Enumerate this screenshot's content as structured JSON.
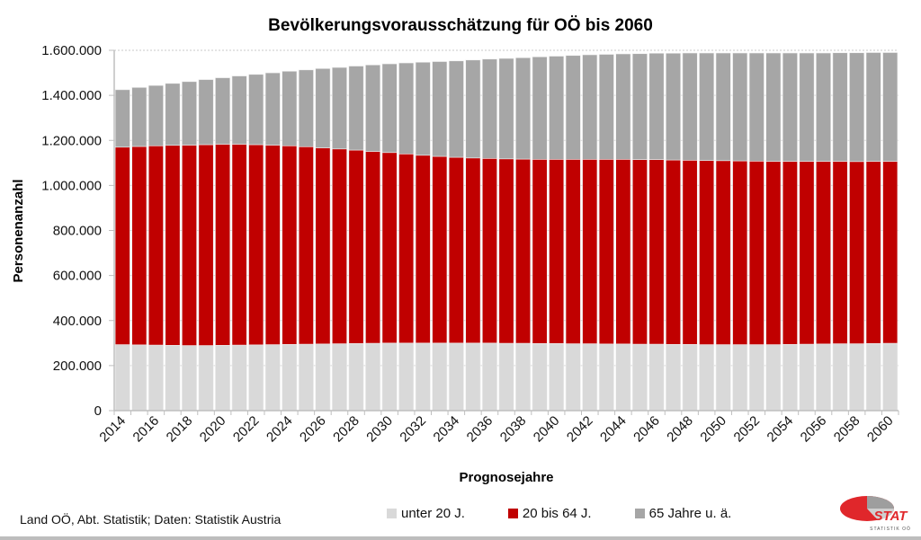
{
  "chart_data": {
    "type": "bar",
    "stacked": true,
    "title": "Bevölkerungsvorausschätzung für OÖ bis 2060",
    "xlabel": "Prognosejahre",
    "ylabel": "Personenanzahl",
    "ylim": [
      0,
      1600000
    ],
    "yticks": [
      0,
      200000,
      400000,
      600000,
      800000,
      1000000,
      1200000,
      1400000,
      1600000
    ],
    "ytick_labels": [
      "0",
      "200.000",
      "400.000",
      "600.000",
      "800.000",
      "1.000.000",
      "1.200.000",
      "1.400.000",
      "1.600.000"
    ],
    "grid": "horizontal-dashed",
    "legend_position": "bottom",
    "categories": [
      2014,
      2015,
      2016,
      2017,
      2018,
      2019,
      2020,
      2021,
      2022,
      2023,
      2024,
      2025,
      2026,
      2027,
      2028,
      2029,
      2030,
      2031,
      2032,
      2033,
      2034,
      2035,
      2036,
      2037,
      2038,
      2039,
      2040,
      2041,
      2042,
      2043,
      2044,
      2045,
      2046,
      2047,
      2048,
      2049,
      2050,
      2051,
      2052,
      2053,
      2054,
      2055,
      2056,
      2057,
      2058,
      2059,
      2060
    ],
    "xtick_labels": [
      "2014",
      "2016",
      "2018",
      "2020",
      "2022",
      "2024",
      "2026",
      "2028",
      "2030",
      "2032",
      "2034",
      "2036",
      "2038",
      "2040",
      "2042",
      "2044",
      "2046",
      "2048",
      "2050",
      "2052",
      "2054",
      "2056",
      "2058",
      "2060"
    ],
    "series": [
      {
        "name": "unter 20 J.",
        "color": "#d9d9d9",
        "values": [
          293000,
          292000,
          291000,
          290000,
          289000,
          289000,
          290000,
          291000,
          292000,
          293000,
          294000,
          295000,
          296000,
          297000,
          298000,
          299000,
          300000,
          300000,
          300000,
          300000,
          300000,
          300000,
          300000,
          299000,
          299000,
          298000,
          298000,
          297000,
          297000,
          296000,
          296000,
          295000,
          295000,
          294000,
          294000,
          293000,
          293000,
          293000,
          293000,
          293000,
          294000,
          295000,
          296000,
          297000,
          297000,
          298000,
          299000
        ]
      },
      {
        "name": "20 bis 64 J.",
        "color": "#c00000",
        "values": [
          877000,
          881000,
          885000,
          888000,
          890000,
          892000,
          893000,
          892000,
          889000,
          886000,
          882000,
          877000,
          871000,
          865000,
          859000,
          852000,
          846000,
          840000,
          834000,
          829000,
          825000,
          822000,
          820000,
          819000,
          818000,
          818000,
          818000,
          819000,
          819000,
          820000,
          820000,
          820000,
          820000,
          819000,
          818000,
          818000,
          817000,
          816000,
          815000,
          814000,
          813000,
          812000,
          811000,
          810000,
          809000,
          809000,
          808000
        ]
      },
      {
        "name": "65 Jahre u. ä.",
        "color": "#a6a6a6",
        "values": [
          255000,
          262000,
          268000,
          275000,
          282000,
          289000,
          295000,
          303000,
          312000,
          321000,
          331000,
          341000,
          352000,
          362000,
          373000,
          384000,
          394000,
          404000,
          413000,
          421000,
          428000,
          435000,
          441000,
          446000,
          450000,
          455000,
          458000,
          461000,
          464000,
          466000,
          468000,
          470000,
          472000,
          474000,
          476000,
          477000,
          478000,
          479000,
          480000,
          481000,
          481000,
          481000,
          481000,
          482000,
          483000,
          483000,
          483000
        ]
      }
    ]
  },
  "footer": {
    "source": "Land OÖ, Abt. Statistik; Daten: Statistik Austria"
  },
  "legend": [
    {
      "label": "unter 20 J.",
      "color": "#d9d9d9"
    },
    {
      "label": "20 bis 64 J.",
      "color": "#c00000"
    },
    {
      "label": "65 Jahre u. ä.",
      "color": "#a6a6a6"
    }
  ],
  "logo": {
    "text": "STAT",
    "subtext": "STATISTIK OÖ"
  }
}
